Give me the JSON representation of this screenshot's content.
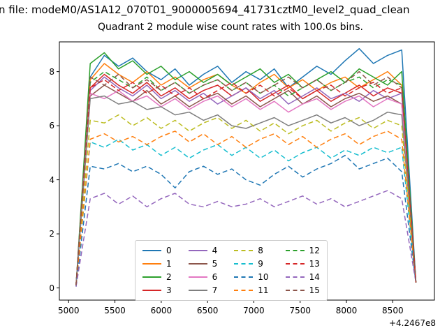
{
  "figure": {
    "suptitle": "n file: modeM0/AS1A12_070T01_9000005694_41731cztM0_level2_quad_clean",
    "background": "#ffffff"
  },
  "chart_data": {
    "type": "line",
    "title": "Quadrant 2 module wise count rates with 100.0s bins.",
    "xlabel": "",
    "ylabel": "",
    "x_offset_text": "+4.2467e8",
    "xlim": [
      4900,
      8950
    ],
    "ylim": [
      -0.45,
      9.1
    ],
    "xticks": [
      5000,
      5500,
      6000,
      6500,
      7000,
      7500,
      8000,
      8500
    ],
    "yticks": [
      0,
      2,
      4,
      6,
      8
    ],
    "grid": false,
    "legend_position": "lower center",
    "legend_columns": 4,
    "x": [
      5080,
      5233,
      5386,
      5539,
      5692,
      5845,
      5998,
      6150,
      6303,
      6456,
      6609,
      6762,
      6915,
      7068,
      7221,
      7374,
      7527,
      7680,
      7833,
      7985,
      8138,
      8291,
      8444,
      8597,
      8750
    ],
    "series": [
      {
        "name": "0",
        "color": "#1f77b4",
        "dash": "solid",
        "values": [
          0.1,
          7.8,
          8.6,
          8.2,
          8.5,
          8.0,
          7.7,
          8.1,
          7.5,
          7.9,
          8.2,
          7.6,
          8.0,
          7.7,
          8.1,
          7.4,
          7.8,
          8.2,
          7.9,
          8.4,
          8.85,
          8.3,
          8.6,
          8.8,
          0.2
        ]
      },
      {
        "name": "1",
        "color": "#ff7f0e",
        "dash": "solid",
        "values": [
          0.1,
          7.7,
          8.3,
          7.9,
          7.6,
          8.0,
          7.5,
          7.8,
          7.4,
          7.7,
          7.9,
          7.5,
          7.2,
          7.6,
          7.9,
          7.4,
          7.7,
          7.3,
          7.6,
          7.8,
          7.4,
          7.7,
          8.0,
          7.5,
          0.2
        ]
      },
      {
        "name": "2",
        "color": "#2ca02c",
        "dash": "solid",
        "values": [
          0.1,
          8.3,
          8.7,
          8.1,
          8.4,
          7.9,
          8.2,
          7.7,
          8.0,
          7.6,
          7.9,
          7.5,
          7.8,
          8.1,
          7.6,
          7.9,
          7.4,
          7.7,
          8.0,
          7.6,
          8.1,
          7.8,
          7.5,
          8.0,
          0.2
        ]
      },
      {
        "name": "3",
        "color": "#d62728",
        "dash": "solid",
        "values": [
          0.1,
          7.4,
          7.9,
          7.5,
          7.2,
          7.6,
          7.1,
          7.4,
          7.0,
          7.3,
          7.5,
          7.1,
          7.4,
          6.9,
          7.2,
          7.5,
          7.0,
          7.3,
          6.9,
          7.2,
          7.5,
          7.1,
          7.4,
          7.2,
          0.2
        ]
      },
      {
        "name": "4",
        "color": "#9467bd",
        "dash": "solid",
        "values": [
          0.1,
          7.3,
          7.8,
          7.4,
          7.1,
          7.5,
          7.0,
          7.3,
          6.9,
          7.2,
          6.8,
          7.1,
          7.4,
          7.0,
          7.3,
          6.8,
          7.1,
          7.4,
          7.0,
          7.2,
          6.9,
          7.3,
          7.0,
          7.2,
          0.2
        ]
      },
      {
        "name": "5",
        "color": "#8c564b",
        "dash": "solid",
        "values": [
          0.1,
          7.1,
          7.5,
          7.2,
          6.9,
          7.3,
          6.8,
          7.1,
          6.7,
          7.0,
          7.2,
          6.8,
          7.1,
          6.7,
          7.0,
          7.3,
          6.8,
          7.1,
          6.7,
          7.0,
          7.2,
          6.9,
          7.1,
          6.8,
          0.2
        ]
      },
      {
        "name": "6",
        "color": "#e377c2",
        "dash": "solid",
        "values": [
          0.1,
          7.2,
          7.0,
          7.3,
          6.9,
          7.1,
          6.7,
          7.0,
          6.6,
          6.9,
          7.1,
          6.7,
          7.0,
          6.6,
          6.9,
          6.5,
          6.8,
          7.0,
          6.6,
          6.9,
          7.1,
          6.7,
          7.0,
          6.8,
          0.2
        ]
      },
      {
        "name": "7",
        "color": "#7f7f7f",
        "dash": "solid",
        "values": [
          0.1,
          7.0,
          7.1,
          6.8,
          6.9,
          6.6,
          6.7,
          6.4,
          6.5,
          6.2,
          6.4,
          6.0,
          5.9,
          6.1,
          6.3,
          6.0,
          6.2,
          6.4,
          6.1,
          6.3,
          6.0,
          6.2,
          6.5,
          6.4,
          0.2
        ]
      },
      {
        "name": "8",
        "color": "#bcbd22",
        "dash": "dashed",
        "values": [
          0.1,
          6.2,
          6.1,
          6.4,
          6.0,
          6.3,
          5.9,
          6.2,
          5.8,
          6.1,
          6.3,
          5.9,
          6.2,
          5.8,
          6.1,
          5.7,
          6.0,
          6.2,
          5.8,
          6.1,
          6.3,
          5.9,
          6.2,
          6.0,
          0.2
        ]
      },
      {
        "name": "9",
        "color": "#17becf",
        "dash": "dashed",
        "values": [
          0.1,
          5.4,
          5.2,
          5.5,
          5.1,
          5.3,
          4.9,
          5.2,
          4.8,
          5.1,
          5.3,
          4.9,
          5.2,
          4.8,
          5.1,
          4.7,
          5.0,
          5.2,
          4.8,
          5.1,
          4.9,
          5.2,
          5.0,
          5.2,
          0.2
        ]
      },
      {
        "name": "10",
        "color": "#1f77b4",
        "dash": "dashed",
        "values": [
          0.05,
          4.5,
          4.4,
          4.6,
          4.3,
          4.5,
          4.2,
          3.7,
          4.3,
          4.5,
          4.2,
          4.4,
          4.0,
          3.8,
          4.2,
          4.5,
          4.1,
          4.4,
          4.6,
          4.9,
          4.4,
          4.6,
          4.8,
          4.3,
          0.2
        ]
      },
      {
        "name": "11",
        "color": "#ff7f0e",
        "dash": "dashed",
        "values": [
          0.1,
          5.5,
          5.7,
          5.4,
          5.6,
          5.3,
          5.6,
          5.8,
          5.4,
          5.7,
          5.3,
          5.6,
          5.2,
          5.5,
          5.7,
          5.3,
          5.6,
          5.2,
          5.5,
          5.7,
          5.3,
          5.6,
          5.8,
          5.5,
          0.2
        ]
      },
      {
        "name": "12",
        "color": "#2ca02c",
        "dash": "dashed",
        "values": [
          0.1,
          7.6,
          8.0,
          7.7,
          7.4,
          7.8,
          7.3,
          7.6,
          7.2,
          7.5,
          7.7,
          7.3,
          7.6,
          7.2,
          7.5,
          7.1,
          7.4,
          7.7,
          7.3,
          7.6,
          7.8,
          7.4,
          7.7,
          7.5,
          0.2
        ]
      },
      {
        "name": "13",
        "color": "#d62728",
        "dash": "dashed",
        "values": [
          0.1,
          7.4,
          7.7,
          7.3,
          7.6,
          7.2,
          7.5,
          7.1,
          7.4,
          7.0,
          7.3,
          7.6,
          7.2,
          7.5,
          7.1,
          7.4,
          7.0,
          7.3,
          7.5,
          7.1,
          7.4,
          7.6,
          7.2,
          7.4,
          0.2
        ]
      },
      {
        "name": "14",
        "color": "#9467bd",
        "dash": "dashed",
        "values": [
          0.05,
          3.3,
          3.5,
          3.1,
          3.4,
          3.0,
          3.3,
          3.5,
          3.1,
          3.0,
          3.2,
          3.0,
          3.1,
          3.3,
          3.0,
          3.2,
          3.4,
          3.1,
          3.3,
          3.0,
          3.2,
          3.4,
          3.6,
          3.3,
          0.2
        ]
      },
      {
        "name": "15",
        "color": "#8c564b",
        "dash": "dashed",
        "values": [
          0.1,
          7.8,
          7.5,
          7.9,
          7.4,
          7.7,
          7.3,
          7.6,
          7.2,
          7.5,
          7.7,
          7.3,
          7.6,
          7.2,
          7.5,
          7.8,
          7.4,
          7.7,
          7.3,
          7.6,
          8.0,
          7.5,
          7.8,
          7.4,
          0.2
        ]
      }
    ]
  }
}
